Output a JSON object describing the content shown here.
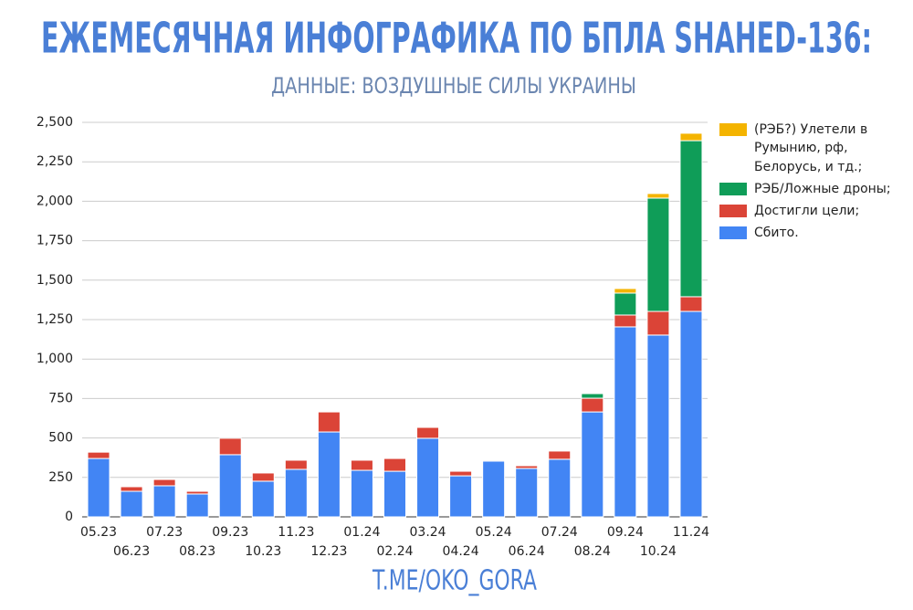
{
  "chart_data": {
    "type": "stacked_bar",
    "title": "ЕЖЕМЕСЯЧНАЯ ИНФОГРАФИКА ПО БПЛА SHAHED-136:",
    "subtitle": "ДАННЫЕ: ВОЗДУШНЫЕ СИЛЫ УКРАИНЫ",
    "footer": "T.ME/OKO_GORA",
    "categories": [
      "05.23",
      "06.23",
      "07.23",
      "08.23",
      "09.23",
      "10.23",
      "11.23",
      "12.23",
      "01.24",
      "02.24",
      "03.24",
      "04.24",
      "05.24",
      "06.24",
      "07.24",
      "08.24",
      "09.24",
      "10.24",
      "11.24"
    ],
    "series": [
      {
        "name": "Сбито.",
        "color": "#4285f4",
        "values": [
          370,
          162,
          197,
          145,
          394,
          226,
          301,
          538,
          295,
          289,
          498,
          260,
          353,
          307,
          365,
          665,
          1204,
          1152,
          1302
        ]
      },
      {
        "name": "Достигли цели;",
        "color": "#db4437",
        "values": [
          40,
          29,
          40,
          17,
          104,
          52,
          58,
          127,
          64,
          81,
          69,
          29,
          6,
          17,
          52,
          87,
          75,
          150,
          93
        ]
      },
      {
        "name": "РЭБ/Ложные дроны;",
        "color": "#0f9d58",
        "values": [
          0,
          0,
          0,
          0,
          0,
          0,
          0,
          0,
          0,
          0,
          0,
          0,
          0,
          0,
          0,
          29,
          139,
          718,
          989
        ]
      },
      {
        "name": "(РЭБ?) Улетели в Румынию, рф, Белорусь, и тд.;",
        "color": "#f4b400",
        "values": [
          0,
          0,
          0,
          0,
          0,
          0,
          0,
          0,
          0,
          0,
          0,
          0,
          0,
          0,
          0,
          0,
          29,
          29,
          47
        ]
      }
    ],
    "ylim": [
      0,
      2500
    ],
    "yticks": [
      0,
      250,
      500,
      750,
      {
        "value": 1000,
        "label": "1,000"
      },
      {
        "value": 1250,
        "label": "1,250"
      },
      {
        "value": 1500,
        "label": "1,500"
      },
      {
        "value": 1750,
        "label": "1,750"
      },
      {
        "value": 2000,
        "label": "2,000"
      },
      {
        "value": 2250,
        "label": "2,250"
      },
      {
        "value": 2500,
        "label": "2,500"
      }
    ],
    "grid": true
  }
}
